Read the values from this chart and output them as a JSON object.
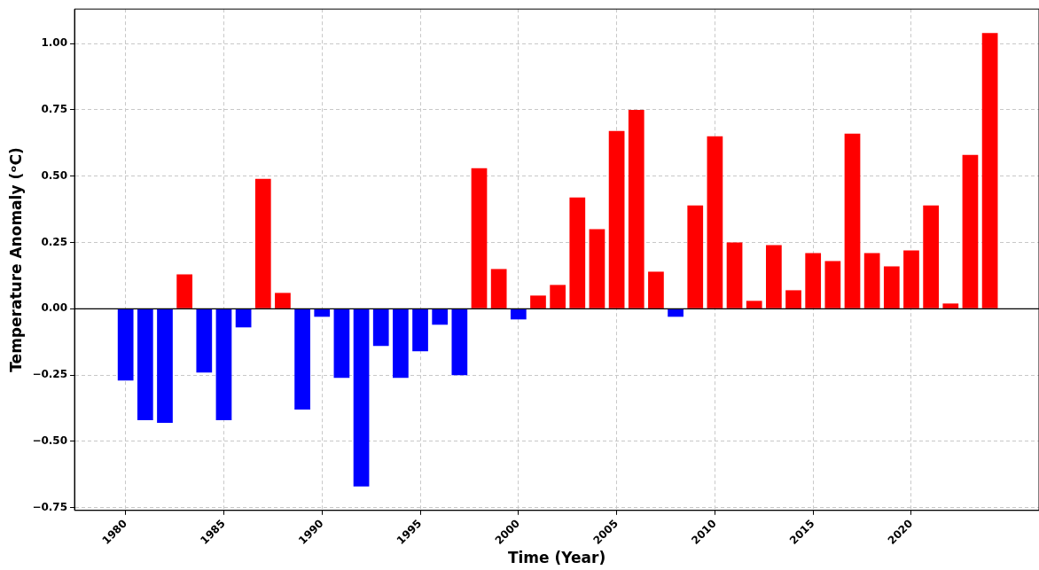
{
  "chart_data": {
    "type": "bar",
    "xlabel": "Time (Year)",
    "ylabel": "Temperature Anomaly (ᵒC)",
    "x": [
      1980,
      1981,
      1982,
      1983,
      1984,
      1985,
      1986,
      1987,
      1988,
      1989,
      1990,
      1991,
      1992,
      1993,
      1994,
      1995,
      1996,
      1997,
      1998,
      1999,
      2000,
      2001,
      2002,
      2003,
      2004,
      2005,
      2006,
      2007,
      2008,
      2009,
      2010,
      2011,
      2012,
      2013,
      2014,
      2015,
      2016,
      2017,
      2018,
      2019,
      2020,
      2021,
      2022,
      2023,
      2024
    ],
    "values": [
      -0.27,
      -0.42,
      -0.43,
      0.13,
      -0.24,
      -0.42,
      -0.07,
      0.49,
      0.06,
      -0.38,
      -0.03,
      -0.26,
      -0.67,
      -0.14,
      -0.26,
      -0.16,
      -0.06,
      -0.25,
      0.53,
      0.15,
      -0.04,
      0.05,
      0.09,
      0.42,
      0.3,
      0.67,
      0.75,
      0.14,
      -0.03,
      0.39,
      0.65,
      0.25,
      0.03,
      0.24,
      0.07,
      0.21,
      0.18,
      0.66,
      0.21,
      0.16,
      0.22,
      0.39,
      0.02,
      0.58,
      1.04
    ],
    "colors": [
      "#0000ff",
      "#0000ff",
      "#0000ff",
      "#ff0000",
      "#0000ff",
      "#0000ff",
      "#0000ff",
      "#ff0000",
      "#ff0000",
      "#0000ff",
      "#0000ff",
      "#0000ff",
      "#0000ff",
      "#0000ff",
      "#0000ff",
      "#0000ff",
      "#0000ff",
      "#0000ff",
      "#ff0000",
      "#ff0000",
      "#0000ff",
      "#ff0000",
      "#ff0000",
      "#ff0000",
      "#ff0000",
      "#ff0000",
      "#ff0000",
      "#ff0000",
      "#0000ff",
      "#ff0000",
      "#ff0000",
      "#ff0000",
      "#ff0000",
      "#ff0000",
      "#ff0000",
      "#ff0000",
      "#ff0000",
      "#ff0000",
      "#ff0000",
      "#ff0000",
      "#ff0000",
      "#ff0000",
      "#ff0000",
      "#ff0000",
      "#ff0000"
    ],
    "xlim": [
      1977.4,
      2026.5
    ],
    "xticks": [
      1980,
      1985,
      1990,
      1995,
      2000,
      2005,
      2010,
      2015,
      2020
    ],
    "ylim": [
      -0.76,
      1.13
    ],
    "yticks": [
      {
        "value": -0.75,
        "label": "−0.75"
      },
      {
        "value": -0.5,
        "label": "−0.50"
      },
      {
        "value": -0.25,
        "label": "−0.25"
      },
      {
        "value": 0,
        "label": "0.00"
      },
      {
        "value": 0.25,
        "label": "0.25"
      },
      {
        "value": 0.5,
        "label": "0.50"
      },
      {
        "value": 0.75,
        "label": "0.75"
      },
      {
        "value": 1,
        "label": "1.00"
      }
    ],
    "ref_lines": [
      {
        "axis": "y",
        "value": 0,
        "color": "#000000"
      }
    ],
    "grid": true
  }
}
